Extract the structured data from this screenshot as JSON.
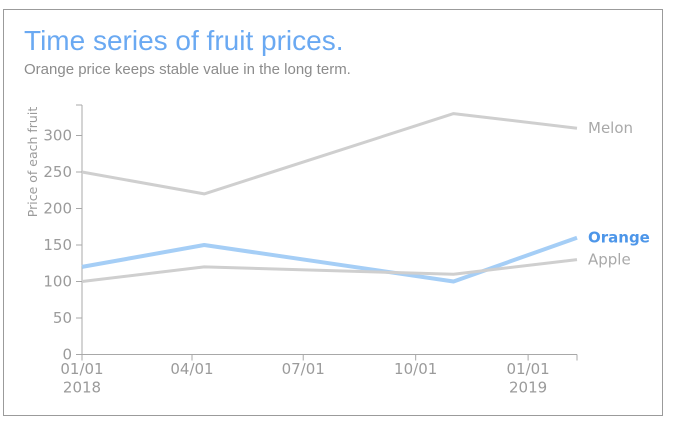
{
  "frame": {
    "border_color": "#9b9b9b",
    "background": "#ffffff"
  },
  "header": {
    "title": "Time series of fruit prices.",
    "title_color": "#6aa9f2",
    "subtitle": "Orange price keeps stable value in the long term.",
    "subtitle_color": "#8c8c8c"
  },
  "chart_data": {
    "type": "line",
    "title": "Time series of fruit prices.",
    "subtitle": "Orange price keeps stable value in the long term.",
    "ylabel": "Price of each fruit",
    "ylim": [
      0,
      340
    ],
    "y_ticks": [
      0,
      50,
      100,
      150,
      200,
      250,
      300
    ],
    "x_range": [
      "2018-01-01",
      "2019-02-10"
    ],
    "x_ticks": [
      {
        "label": "01/01",
        "sublabel": "2018",
        "date": "2018-01-01"
      },
      {
        "label": "04/01",
        "sublabel": "",
        "date": "2018-04-01"
      },
      {
        "label": "07/01",
        "sublabel": "",
        "date": "2018-07-01"
      },
      {
        "label": "10/01",
        "sublabel": "",
        "date": "2018-10-01"
      },
      {
        "label": "01/01",
        "sublabel": "2019",
        "date": "2019-01-01"
      }
    ],
    "grid": false,
    "legend_position": "line-end-labels",
    "axis_color": "#a8a8a8",
    "tick_label_color": "#9b9b9b",
    "series": [
      {
        "name": "Melon",
        "color": "#cfcfcf",
        "label_color": "#a9a9a9",
        "line_width": 3,
        "bold_label": false,
        "points": [
          {
            "date": "2018-01-01",
            "value": 250
          },
          {
            "date": "2018-04-11",
            "value": 220
          },
          {
            "date": "2018-11-01",
            "value": 330
          },
          {
            "date": "2019-02-10",
            "value": 310
          }
        ]
      },
      {
        "name": "Orange",
        "color": "#a5cef6",
        "label_color": "#4d96e9",
        "line_width": 4,
        "bold_label": true,
        "points": [
          {
            "date": "2018-01-01",
            "value": 120
          },
          {
            "date": "2018-04-11",
            "value": 150
          },
          {
            "date": "2018-11-01",
            "value": 100
          },
          {
            "date": "2019-02-10",
            "value": 160
          }
        ]
      },
      {
        "name": "Apple",
        "color": "#cfcfcf",
        "label_color": "#a9a9a9",
        "line_width": 3,
        "bold_label": false,
        "points": [
          {
            "date": "2018-01-01",
            "value": 100
          },
          {
            "date": "2018-04-11",
            "value": 120
          },
          {
            "date": "2018-11-01",
            "value": 110
          },
          {
            "date": "2019-02-10",
            "value": 130
          }
        ]
      }
    ]
  }
}
